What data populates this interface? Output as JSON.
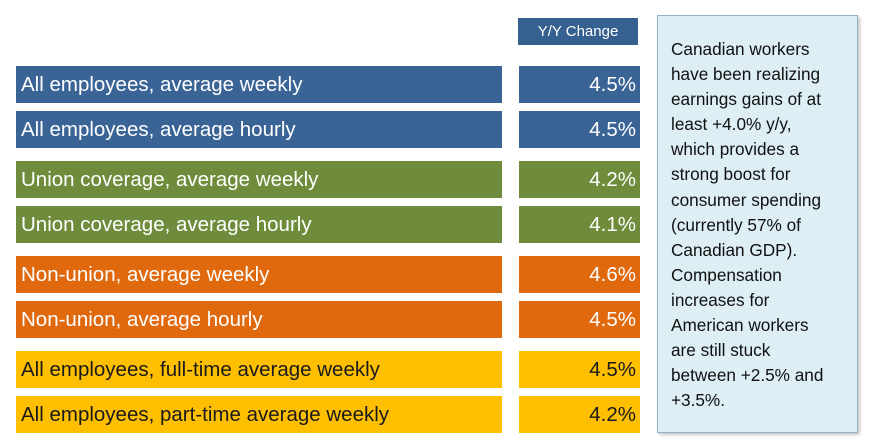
{
  "header": {
    "label": "Y/Y Change"
  },
  "colors": {
    "blue": "#3a6396",
    "green": "#6e8c3b",
    "orange": "#e0690e",
    "yellow": "#fdbf00",
    "note_bg": "#ddeef5"
  },
  "rows": [
    {
      "label": "All employees, average weekly",
      "value": "4.5%",
      "color": "blue"
    },
    {
      "label": "All employees, average hourly",
      "value": "4.5%",
      "color": "blue"
    },
    {
      "label": "Union coverage, average weekly",
      "value": "4.2%",
      "color": "green"
    },
    {
      "label": "Union coverage, average hourly",
      "value": "4.1%",
      "color": "green"
    },
    {
      "label": "Non-union, average weekly",
      "value": "4.6%",
      "color": "orange"
    },
    {
      "label": "Non-union, average hourly",
      "value": "4.5%",
      "color": "orange"
    },
    {
      "label": "All employees, full-time average weekly",
      "value": "4.5%",
      "color": "yellow"
    },
    {
      "label": "All employees, part-time average weekly",
      "value": "4.2%",
      "color": "yellow"
    }
  ],
  "note": {
    "text": "Canadian workers\nhave been realizing\nearnings gains of at\nleast  +4.0% y/y,\nwhich provides a\nstrong boost for\nconsumer spending\n(currently 57% of\nCanadian GDP).\nCompensation\nincreases for\nAmerican workers\nare still stuck\nbetween +2.5% and\n+3.5%."
  }
}
